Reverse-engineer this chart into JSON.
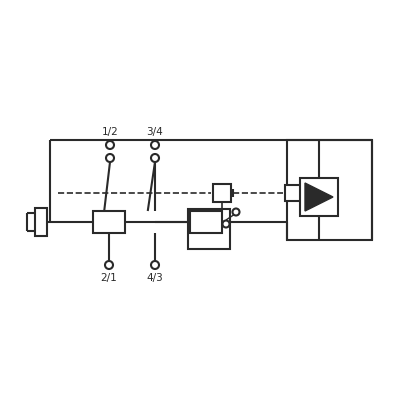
{
  "bg_color": "#ffffff",
  "line_color": "#2a2a2a",
  "lw": 1.5,
  "lw_thin": 1.0,
  "label_12": "1/2",
  "label_34": "3/4",
  "label_21": "2/1",
  "label_43": "4/3",
  "figsize": [
    4.0,
    4.0
  ],
  "dpi": 100
}
